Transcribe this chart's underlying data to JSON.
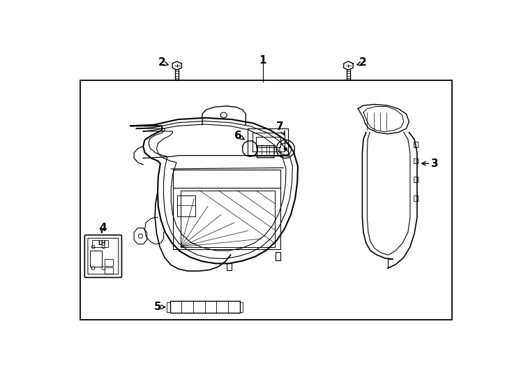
{
  "bg_color": "#ffffff",
  "border_color": "#000000",
  "line_color": "#000000",
  "fig_width": 7.34,
  "fig_height": 5.4,
  "dpi": 100,
  "label_fontsize": 11,
  "bold_label_fontsize": 12
}
